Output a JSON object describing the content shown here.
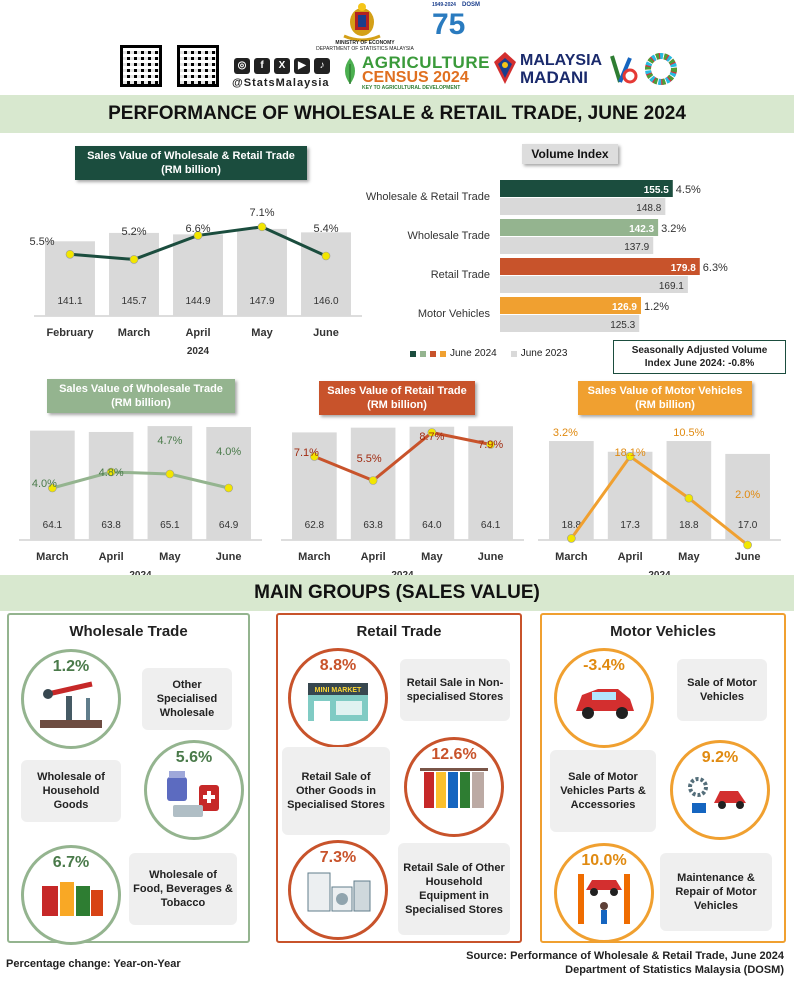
{
  "header": {
    "ministry_line1": "MINISTRY OF ECONOMY",
    "ministry_line2": "DEPARTMENT OF STATISTICS MALAYSIA",
    "social_handle": "@StatsMalaysia",
    "census_line1": "AGRICULTURE",
    "census_line2": "CENSUS 2024",
    "census_tagline": "KEY TO AGRICULTURAL DEVELOPMENT",
    "madani_line1": "MALAYSIA",
    "madani_line2": "MADANI",
    "anniv_years": "1949-2024",
    "anniv_brand": "DOSM",
    "anniv_number": "75"
  },
  "title": "PERFORMANCE OF WHOLESALE & RETAIL TRADE, JUNE 2024",
  "main_groups_title": "MAIN GROUPS (SALES VALUE)",
  "colors": {
    "wholesale_retail": "#1b4d3e",
    "wholesale": "#94b48f",
    "retail": "#c8532b",
    "motor": "#f0a030",
    "bar_grey": "#d9d9d9",
    "band": "#d8e8cf"
  },
  "chart_data": [
    {
      "type": "bar",
      "title_line1": "Sales Value of Wholesale & Retail Trade",
      "title_line2": "(RM billion)",
      "categories": [
        "February",
        "March",
        "April",
        "May",
        "June"
      ],
      "values": [
        141.1,
        145.7,
        144.9,
        147.9,
        146.0
      ],
      "line_values": [
        5.5,
        5.2,
        6.6,
        7.1,
        5.4
      ],
      "line_labels": [
        "5.5%",
        "5.2%",
        "6.6%",
        "7.1%",
        "5.4%"
      ],
      "year_label": "2024"
    },
    {
      "type": "bar",
      "title_line1": "Volume Index",
      "categories": [
        "Wholesale & Retail Trade",
        "Wholesale Trade",
        "Retail Trade",
        "Motor Vehicles"
      ],
      "series": [
        {
          "name": "June 2024",
          "values": [
            155.5,
            142.3,
            179.8,
            126.9
          ]
        },
        {
          "name": "June 2023",
          "values": [
            148.8,
            137.9,
            169.1,
            125.3
          ]
        }
      ],
      "change_labels": [
        "4.5%",
        "3.2%",
        "6.3%",
        "1.2%"
      ],
      "note_line1": "Seasonally Adjusted Volume",
      "note_line2": "Index June 2024: -0.8%"
    },
    {
      "type": "bar",
      "title_line1": "Sales Value of Wholesale Trade",
      "title_line2": "(RM billion)",
      "categories": [
        "March",
        "April",
        "May",
        "June"
      ],
      "values": [
        64.1,
        63.8,
        65.1,
        64.9
      ],
      "line_values": [
        4.0,
        4.8,
        4.7,
        4.0
      ],
      "line_labels": [
        "4.0%",
        "4.8%",
        "4.7%",
        "4.0%"
      ],
      "year_label": "2024"
    },
    {
      "type": "bar",
      "title_line1": "Sales Value of Retail Trade",
      "title_line2": "(RM billion)",
      "categories": [
        "March",
        "April",
        "May",
        "June"
      ],
      "values": [
        62.8,
        63.8,
        64.0,
        64.1
      ],
      "line_values": [
        7.1,
        5.5,
        8.7,
        7.9
      ],
      "line_labels": [
        "7.1%",
        "5.5%",
        "8.7%",
        "7.9%"
      ],
      "year_label": "2024"
    },
    {
      "type": "bar",
      "title_line1": "Sales Value of Motor Vehicles",
      "title_line2": "(RM billion)",
      "categories": [
        "March",
        "April",
        "May",
        "June"
      ],
      "values": [
        18.8,
        17.3,
        18.8,
        17.0
      ],
      "line_values": [
        3.2,
        18.1,
        10.5,
        2.0
      ],
      "line_labels": [
        "3.2%",
        "18.1%",
        "10.5%",
        "2.0%"
      ],
      "year_label": "2024"
    }
  ],
  "groups": {
    "wholesale": {
      "title": "Wholesale Trade",
      "items": [
        {
          "pct": "1.2%",
          "label": "Other Specialised Wholesale",
          "icon": "oil-pump-icon"
        },
        {
          "pct": "5.6%",
          "label": "Wholesale of Household Goods",
          "icon": "medicine-icon"
        },
        {
          "pct": "6.7%",
          "label": "Wholesale of Food, Beverages & Tobacco",
          "icon": "food-cans-icon"
        }
      ]
    },
    "retail": {
      "title": "Retail Trade",
      "items": [
        {
          "pct": "8.8%",
          "label": "Retail Sale in Non-specialised Stores",
          "icon": "mini-market-icon",
          "sign": "MINI MARKET"
        },
        {
          "pct": "12.6%",
          "label": "Retail Sale of Other Goods in Specialised Stores",
          "icon": "clothes-rack-icon"
        },
        {
          "pct": "7.3%",
          "label": "Retail Sale of Other Household Equipment in Specialised Stores",
          "icon": "appliances-icon"
        }
      ]
    },
    "motor": {
      "title": "Motor Vehicles",
      "items": [
        {
          "pct": "-3.4%",
          "label": "Sale of Motor Vehicles",
          "icon": "car-icon"
        },
        {
          "pct": "9.2%",
          "label": "Sale of Motor Vehicles Parts & Accessories",
          "icon": "car-parts-icon"
        },
        {
          "pct": "10.0%",
          "label": "Maintenance & Repair of Motor Vehicles",
          "icon": "car-lift-icon"
        }
      ]
    }
  },
  "footer": {
    "note": "Percentage change: Year-on-Year",
    "source_line1": "Source: Performance of Wholesale & Retail Trade, June 2024",
    "source_line2": "Department of Statistics Malaysia  (DOSM)"
  }
}
